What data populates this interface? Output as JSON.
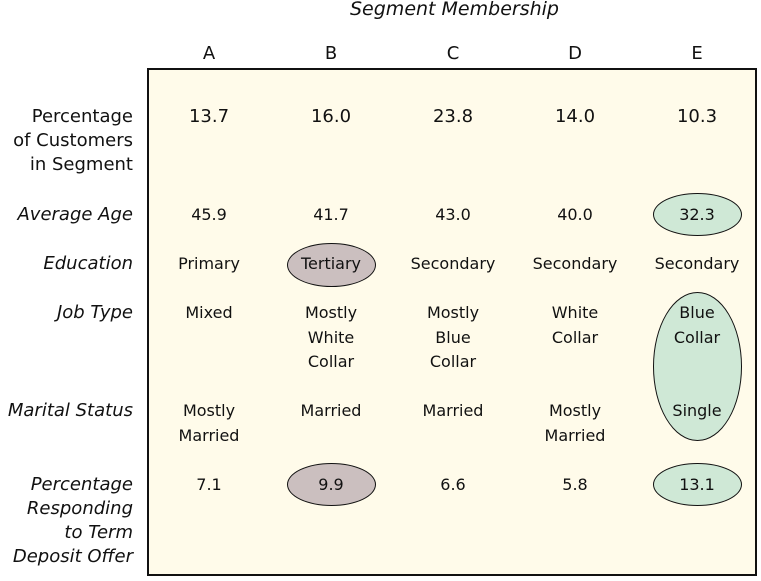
{
  "title": "Segment Membership",
  "columns": [
    "A",
    "B",
    "C",
    "D",
    "E"
  ],
  "row_labels": {
    "percentage": [
      "Percentage",
      "of Customers",
      "in Segment"
    ],
    "age": "Average Age",
    "education": "Education",
    "job": "Job Type",
    "marital": "Marital Status",
    "response": [
      "Percentage",
      "Responding",
      "to Term",
      "Deposit Offer"
    ]
  },
  "percentage": [
    "13.7",
    "16.0",
    "23.8",
    "14.0",
    "10.3"
  ],
  "age": [
    "45.9",
    "41.7",
    "43.0",
    "40.0",
    "32.3"
  ],
  "education": [
    "Primary",
    "Tertiary",
    "Secondary",
    "Secondary",
    "Secondary"
  ],
  "job": [
    [
      "Mixed"
    ],
    [
      "Mostly",
      "White",
      "Collar"
    ],
    [
      "Mostly",
      "Blue",
      "Collar"
    ],
    [
      "White",
      "Collar"
    ],
    [
      "Blue",
      "Collar"
    ]
  ],
  "marital": [
    [
      "Mostly",
      "Married"
    ],
    [
      "Married"
    ],
    [
      "Married"
    ],
    [
      "Mostly",
      "Married"
    ],
    [
      "Single"
    ]
  ],
  "response": [
    "7.1",
    "9.9",
    "6.6",
    "5.8",
    "13.1"
  ],
  "colors": {
    "panel": "#fffbea",
    "highlight_green": "#cfe8d6",
    "highlight_grey": "#cbbfbf"
  }
}
